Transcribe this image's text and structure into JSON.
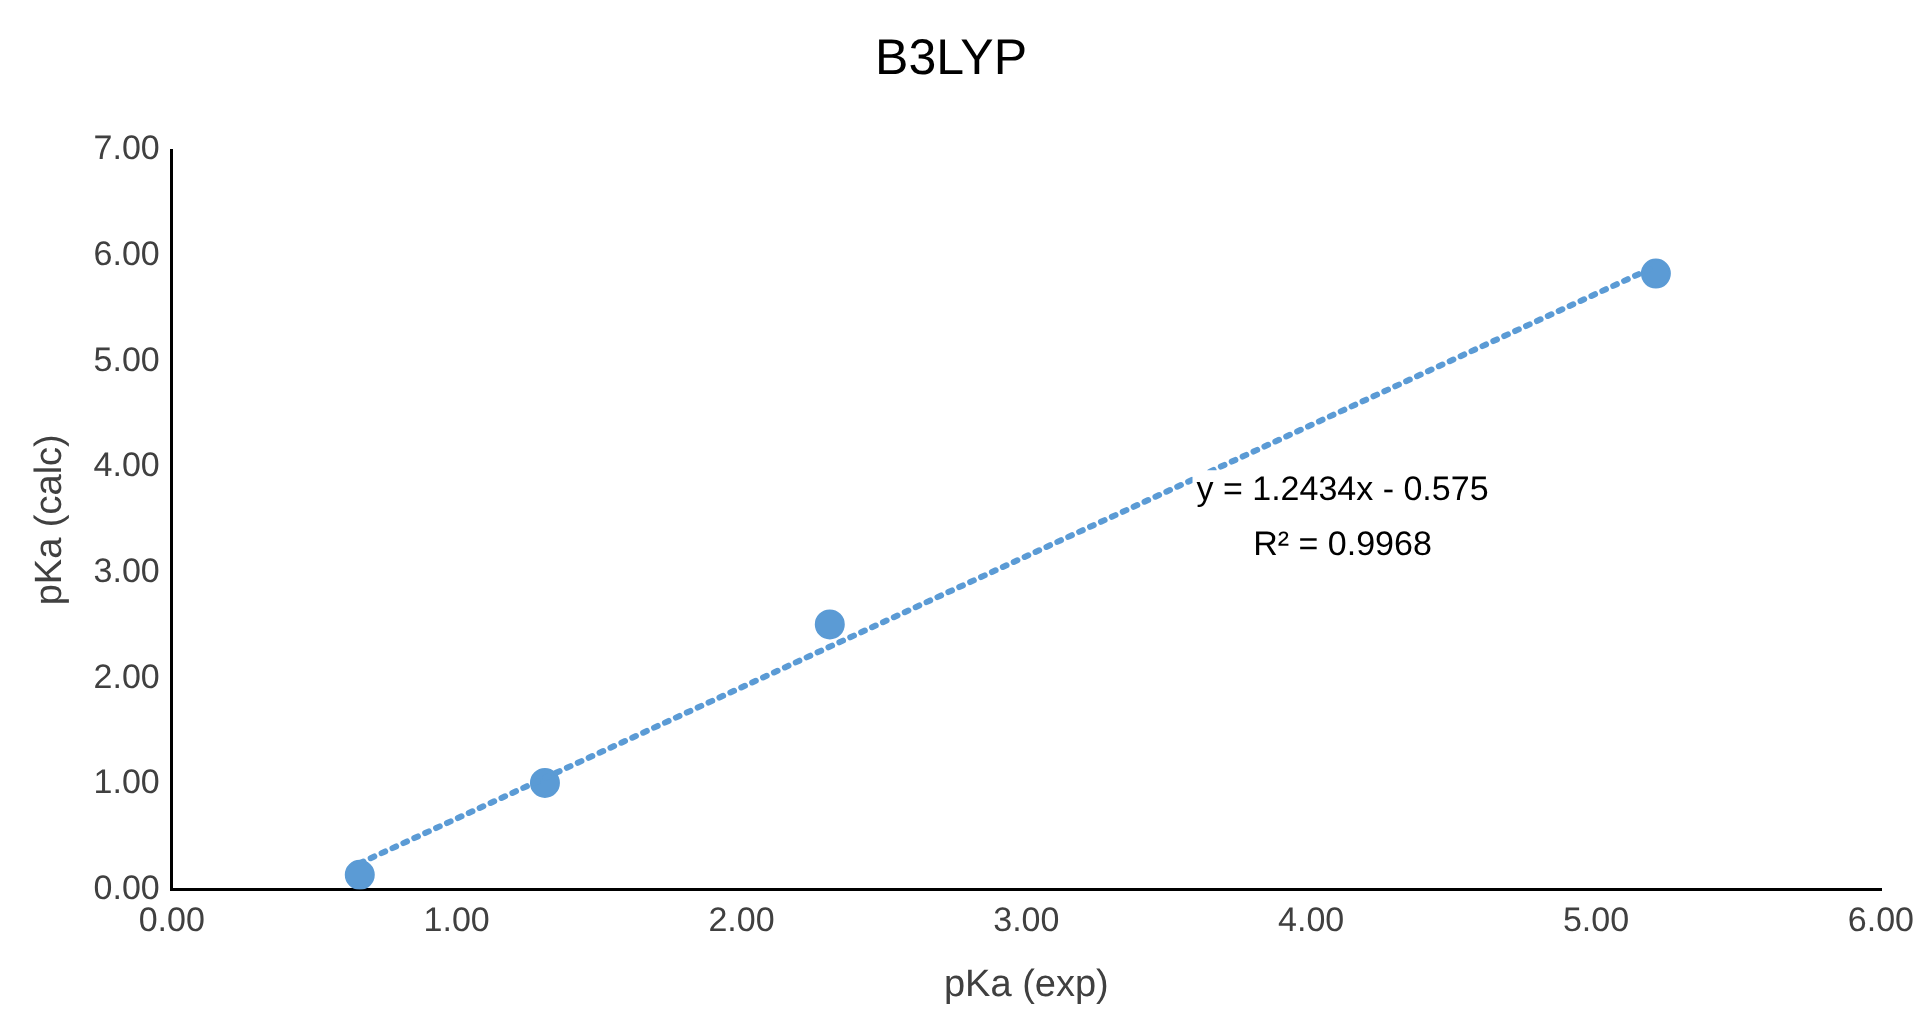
{
  "chart_data": {
    "type": "scatter",
    "title": "B3LYP",
    "xlabel": "pKa (exp)",
    "ylabel": "pKa (calc)",
    "series": [
      {
        "color": "#5b9bd5",
        "marker": "circle",
        "x": [
          0.66,
          1.31,
          2.31,
          5.21
        ],
        "values": [
          0.14,
          1.01,
          2.51,
          5.83
        ]
      },
      {
        "type": "line",
        "color": "#5b9bd5",
        "marker": "none",
        "line_style": "dotted",
        "x": [
          0.66,
          5.21
        ],
        "values": [
          0.25,
          5.9
        ]
      }
    ],
    "xlim": [
      0,
      6
    ],
    "xticks": [
      {
        "value": 0,
        "label": "0.00"
      },
      {
        "value": 1,
        "label": "1.00"
      },
      {
        "value": 2,
        "label": "2.00"
      },
      {
        "value": 3,
        "label": "3.00"
      },
      {
        "value": 4,
        "label": "4.00"
      },
      {
        "value": 5,
        "label": "5.00"
      },
      {
        "value": 6,
        "label": "6.00"
      }
    ],
    "ylim": [
      0,
      7
    ],
    "yticks": [
      {
        "value": 0,
        "label": "0.00"
      },
      {
        "value": 1,
        "label": "1.00"
      },
      {
        "value": 2,
        "label": "2.00"
      },
      {
        "value": 3,
        "label": "3.00"
      },
      {
        "value": 4,
        "label": "4.00"
      },
      {
        "value": 5,
        "label": "5.00"
      },
      {
        "value": 6,
        "label": "6.00"
      },
      {
        "value": 7,
        "label": "7.00"
      }
    ],
    "grid": false,
    "legend": false,
    "annotations": [
      "y = 1.2434x - 0.575",
      "R² = 0.9968"
    ]
  }
}
